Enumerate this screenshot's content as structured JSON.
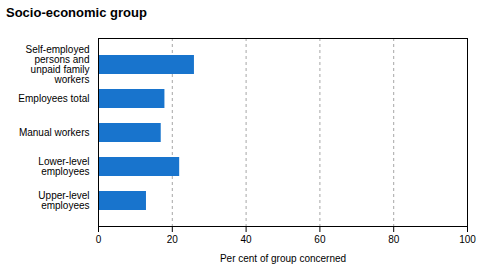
{
  "chart_data": {
    "type": "bar",
    "orientation": "horizontal",
    "title": "Socio-economic group",
    "categories": [
      "Upper-level\nemployees",
      "Lower-level\nemployees",
      "Manual workers",
      "Employees total",
      "Self-employed\npersons and\nunpaid family\nworkers"
    ],
    "values": [
      13,
      22,
      17,
      18,
      26
    ],
    "color": "#1874CD",
    "xlabel": "Per cent of group concerned",
    "xlim": [
      0,
      100
    ],
    "xticks": [
      0,
      20,
      40,
      60,
      80,
      100
    ],
    "grid": true
  }
}
